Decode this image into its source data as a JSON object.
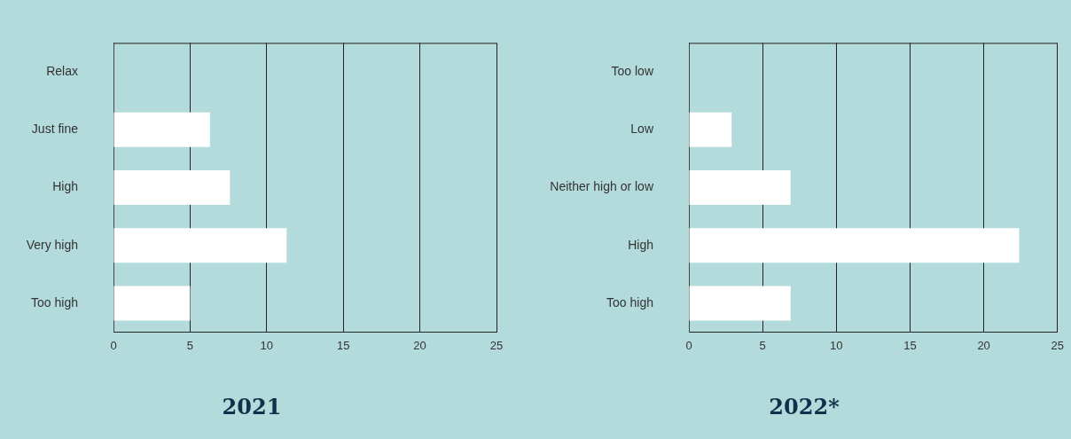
{
  "chart_data": [
    {
      "type": "bar",
      "title": "2021",
      "orientation": "horizontal",
      "categories": [
        "Relax",
        "Just fine",
        "High",
        "Very high",
        "Too high"
      ],
      "values": [
        0,
        6.3,
        7.6,
        11.3,
        5.0
      ],
      "color": "#ffffff",
      "xlim": [
        0,
        25
      ],
      "xticks": [
        0,
        5,
        10,
        15,
        20,
        25
      ],
      "grid": "x"
    },
    {
      "type": "bar",
      "title": "2022*",
      "orientation": "horizontal",
      "categories": [
        "Too low",
        "Low",
        "Neither high or low",
        "High",
        "Too high"
      ],
      "values": [
        0,
        2.9,
        6.9,
        22.4,
        6.9
      ],
      "color": "#ffffff",
      "xlim": [
        0,
        25
      ],
      "xticks": [
        0,
        5,
        10,
        15,
        20,
        25
      ],
      "grid": "x"
    }
  ]
}
